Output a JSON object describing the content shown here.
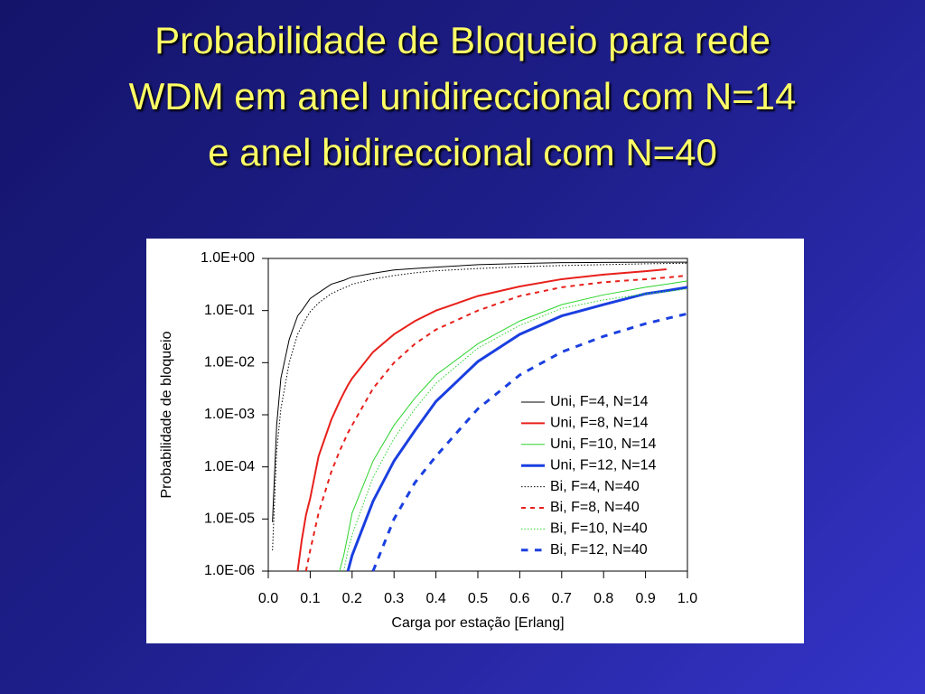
{
  "chart_data": {
    "type": "line",
    "title": [
      "Probabilidade de Bloqueio para rede",
      "WDM em anel unidireccional com N=14",
      "e anel bidireccional com N=40"
    ],
    "x_label": "Carga por estação [Erlang]",
    "y_label": "Probabilidade de bloqueio",
    "log_y": true,
    "legend": "right",
    "xlim": [
      0,
      1
    ],
    "ylim": [
      1e-06,
      1
    ],
    "xticks": [
      {
        "value": 0,
        "label": "0.0"
      },
      0.1,
      0.2,
      0.3,
      0.4,
      0.5,
      0.6,
      0.7,
      0.8,
      0.9,
      {
        "value": 1,
        "label": "1.0"
      }
    ],
    "yticks": [
      {
        "value": 1,
        "label": "1.0E+00"
      },
      {
        "value": 0.1,
        "label": "1.0E-01"
      },
      {
        "value": 0.01,
        "label": "1.0E-02"
      },
      {
        "value": 0.001,
        "label": "1.0E-03"
      },
      {
        "value": 0.0001,
        "label": "1.0E-04"
      },
      {
        "value": 1e-05,
        "label": "1.0E-05"
      },
      {
        "value": 1e-06,
        "label": "1.0E-06"
      }
    ],
    "x": [
      0.01,
      0.02,
      0.03,
      0.05,
      0.07,
      0.08,
      0.09,
      0.1,
      0.12,
      0.15,
      0.17,
      0.18,
      0.19,
      0.2,
      0.25,
      0.3,
      0.35,
      0.4,
      0.5,
      0.6,
      0.7,
      0.8,
      0.9,
      0.95,
      1.0
    ],
    "series": [
      {
        "name": "Uni, F=4, N=14",
        "color": "#000000",
        "dash": "solid",
        "width": 1,
        "values": [
          8.7e-06,
          0.00063,
          0.005,
          0.028,
          0.079,
          0.1,
          0.13,
          0.17,
          0.22,
          0.32,
          0.36,
          0.38,
          0.41,
          0.44,
          0.52,
          0.6,
          0.64,
          0.68,
          0.76,
          0.8,
          0.83,
          0.84,
          0.85,
          0.85,
          0.85
        ]
      },
      {
        "name": "Uni, F=8, N=14",
        "color": "#e8201b",
        "dash": "solid",
        "width": 2,
        "values": [
          null,
          null,
          null,
          null,
          1e-06,
          4e-06,
          1.2e-05,
          2.5e-05,
          0.00016,
          0.00079,
          0.0018,
          0.0026,
          0.0037,
          0.005,
          0.016,
          0.035,
          0.063,
          0.1,
          0.19,
          0.29,
          0.4,
          0.49,
          0.57,
          0.62,
          null
        ]
      },
      {
        "name": "Uni, F=10, N=14",
        "color": "#2bd42b",
        "dash": "solid",
        "width": 1,
        "values": [
          null,
          null,
          null,
          null,
          null,
          null,
          null,
          null,
          null,
          null,
          1e-06,
          2e-06,
          5e-06,
          1.3e-05,
          0.00013,
          0.00063,
          0.0021,
          0.0058,
          0.023,
          0.063,
          0.13,
          0.2,
          0.28,
          0.32,
          0.37
        ]
      },
      {
        "name": "Uni, F=12, N=14",
        "color": "#1a3fe0",
        "dash": "solid",
        "width": 3,
        "values": [
          null,
          null,
          null,
          null,
          null,
          null,
          null,
          null,
          null,
          null,
          null,
          null,
          1e-06,
          2e-06,
          2.2e-05,
          0.00013,
          0.0005,
          0.0018,
          0.0105,
          0.035,
          0.079,
          0.13,
          0.21,
          0.24,
          0.28
        ]
      },
      {
        "name": "Bi, F=4, N=40",
        "color": "#000000",
        "dash": "dotted",
        "width": 1,
        "values": [
          2.5e-06,
          0.0002,
          0.0013,
          0.01,
          0.035,
          0.05,
          0.07,
          0.095,
          0.14,
          0.21,
          0.25,
          0.27,
          0.29,
          0.32,
          0.4,
          0.47,
          0.53,
          0.58,
          0.64,
          0.69,
          0.73,
          0.76,
          0.79,
          0.8,
          0.81
        ]
      },
      {
        "name": "Bi, F=8, N=40",
        "color": "#e8201b",
        "dash": "dashed",
        "width": 2,
        "values": [
          null,
          null,
          null,
          null,
          null,
          null,
          1e-06,
          2.5e-06,
          1.3e-05,
          7.9e-05,
          0.0002,
          0.0003,
          0.00045,
          0.00063,
          0.0032,
          0.01,
          0.023,
          0.043,
          0.1,
          0.19,
          0.28,
          0.35,
          0.4,
          0.43,
          0.47
        ]
      },
      {
        "name": "Bi, F=10, N=40",
        "color": "#2bd42b",
        "dash": "dotted",
        "width": 1,
        "values": [
          null,
          null,
          null,
          null,
          null,
          null,
          null,
          null,
          null,
          null,
          null,
          1e-06,
          2.5e-06,
          5e-06,
          6.3e-05,
          0.00035,
          0.0013,
          0.004,
          0.019,
          0.052,
          0.11,
          0.16,
          0.21,
          0.23,
          0.26
        ]
      },
      {
        "name": "Bi, F=12, N=40",
        "color": "#1a3fe0",
        "dash": "dashed",
        "width": 3,
        "values": [
          null,
          null,
          null,
          null,
          null,
          null,
          null,
          null,
          null,
          null,
          null,
          null,
          null,
          null,
          1e-06,
          1e-05,
          5e-05,
          0.00016,
          0.0013,
          0.0058,
          0.016,
          0.032,
          0.056,
          0.07,
          0.087
        ]
      }
    ]
  }
}
